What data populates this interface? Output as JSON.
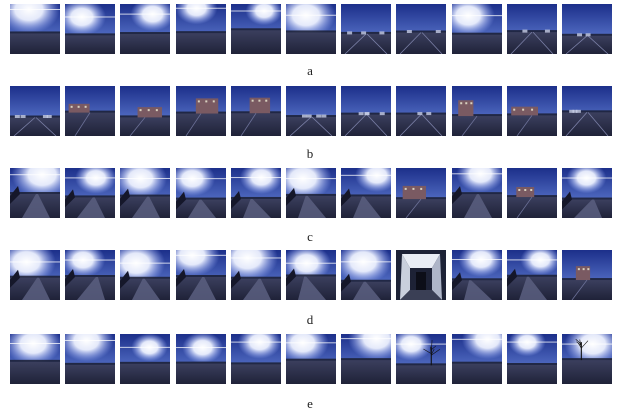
{
  "figure": {
    "rows": [
      {
        "label": "a",
        "thumbnails": [
          "sun-glare",
          "sun-glare",
          "sun-glare",
          "sun-glare",
          "sun-glare",
          "sun-glare",
          "parking-lot",
          "parking-lot",
          "sun-glare",
          "parking-lot",
          "parking-lot"
        ]
      },
      {
        "label": "b",
        "thumbnails": [
          "parking-lot",
          "building-street",
          "building-street",
          "building-street",
          "building-street",
          "parking-lot",
          "parking-lot",
          "parking-lot",
          "building-street",
          "building-street",
          "parking-lot"
        ]
      },
      {
        "label": "c",
        "thumbnails": [
          "sidewalk",
          "sidewalk",
          "sidewalk",
          "sidewalk",
          "sidewalk",
          "sidewalk",
          "sidewalk",
          "building-street",
          "sidewalk",
          "building-street",
          "sidewalk"
        ]
      },
      {
        "label": "d",
        "thumbnails": [
          "sidewalk",
          "sidewalk",
          "sidewalk",
          "sidewalk",
          "sidewalk",
          "sidewalk",
          "sidewalk",
          "indoor-corridor",
          "sidewalk",
          "sidewalk",
          "building-street"
        ]
      },
      {
        "label": "e",
        "thumbnails": [
          "sun-glare",
          "sun-glare",
          "sun-glare",
          "sun-glare",
          "sun-glare",
          "sun-glare",
          "sun-glare",
          "tree-street",
          "sun-glare",
          "sun-glare",
          "tree-street"
        ]
      }
    ]
  }
}
